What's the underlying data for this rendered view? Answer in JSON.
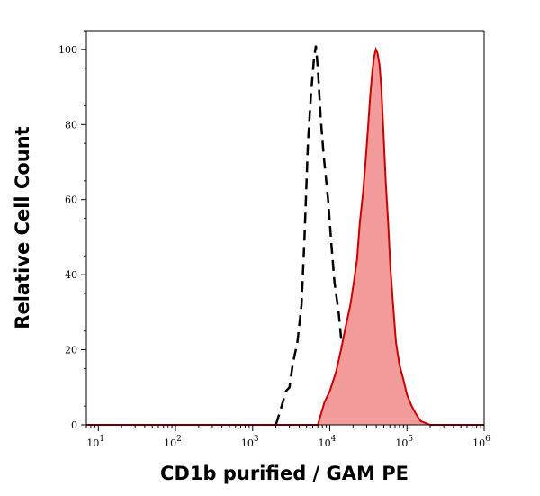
{
  "chart_data": {
    "type": "area",
    "title": "",
    "xlabel": "CD1b purified / GAM PE",
    "ylabel": "Relative Cell Count",
    "x_scale": "log",
    "xlim": [
      7,
      1000000
    ],
    "ylim": [
      0,
      105
    ],
    "x_ticks": [
      {
        "value": 10,
        "base": "10",
        "exp": "1"
      },
      {
        "value": 100,
        "base": "10",
        "exp": "2"
      },
      {
        "value": 1000,
        "base": "10",
        "exp": "3"
      },
      {
        "value": 10000,
        "base": "10",
        "exp": "4"
      },
      {
        "value": 100000,
        "base": "10",
        "exp": "5"
      },
      {
        "value": 1000000,
        "base": "10",
        "exp": "6"
      }
    ],
    "y_ticks": [
      0,
      20,
      40,
      60,
      80,
      100
    ],
    "grid": false,
    "legend": "none",
    "series": [
      {
        "style": "dashed-outline",
        "color": "#000000",
        "points": [
          [
            2000,
            0
          ],
          [
            2300,
            4
          ],
          [
            2700,
            9
          ],
          [
            3000,
            10
          ],
          [
            3300,
            16
          ],
          [
            3800,
            22
          ],
          [
            4300,
            32
          ],
          [
            4700,
            50
          ],
          [
            5200,
            75
          ],
          [
            5700,
            88
          ],
          [
            6200,
            97
          ],
          [
            6600,
            101
          ],
          [
            7000,
            95
          ],
          [
            7600,
            82
          ],
          [
            8300,
            72
          ],
          [
            9500,
            60
          ],
          [
            10500,
            48
          ],
          [
            11500,
            38
          ],
          [
            13000,
            30
          ],
          [
            14500,
            20
          ],
          [
            16000,
            16
          ],
          [
            18000,
            10
          ],
          [
            20000,
            6
          ],
          [
            22000,
            3
          ],
          [
            25000,
            0
          ]
        ]
      },
      {
        "style": "filled",
        "color": "#cc0000",
        "fill": "#f39a9a",
        "points": [
          [
            7,
            0
          ],
          [
            100,
            0
          ],
          [
            1000,
            0
          ],
          [
            7000,
            0
          ],
          [
            8500,
            6
          ],
          [
            10000,
            9
          ],
          [
            12000,
            14
          ],
          [
            14000,
            20
          ],
          [
            16000,
            26
          ],
          [
            18500,
            32
          ],
          [
            20500,
            38
          ],
          [
            22500,
            44
          ],
          [
            24500,
            54
          ],
          [
            27000,
            62
          ],
          [
            29500,
            72
          ],
          [
            31500,
            80
          ],
          [
            33500,
            88
          ],
          [
            35500,
            94
          ],
          [
            37500,
            98
          ],
          [
            39500,
            100
          ],
          [
            41500,
            99
          ],
          [
            44000,
            96
          ],
          [
            46500,
            90
          ],
          [
            49500,
            78
          ],
          [
            53000,
            65
          ],
          [
            57000,
            54
          ],
          [
            61000,
            42
          ],
          [
            66000,
            32
          ],
          [
            72000,
            22
          ],
          [
            80000,
            16
          ],
          [
            90000,
            12
          ],
          [
            100000,
            8
          ],
          [
            115000,
            5
          ],
          [
            130000,
            3
          ],
          [
            150000,
            1
          ],
          [
            200000,
            0
          ],
          [
            1000000,
            0
          ]
        ]
      }
    ]
  }
}
